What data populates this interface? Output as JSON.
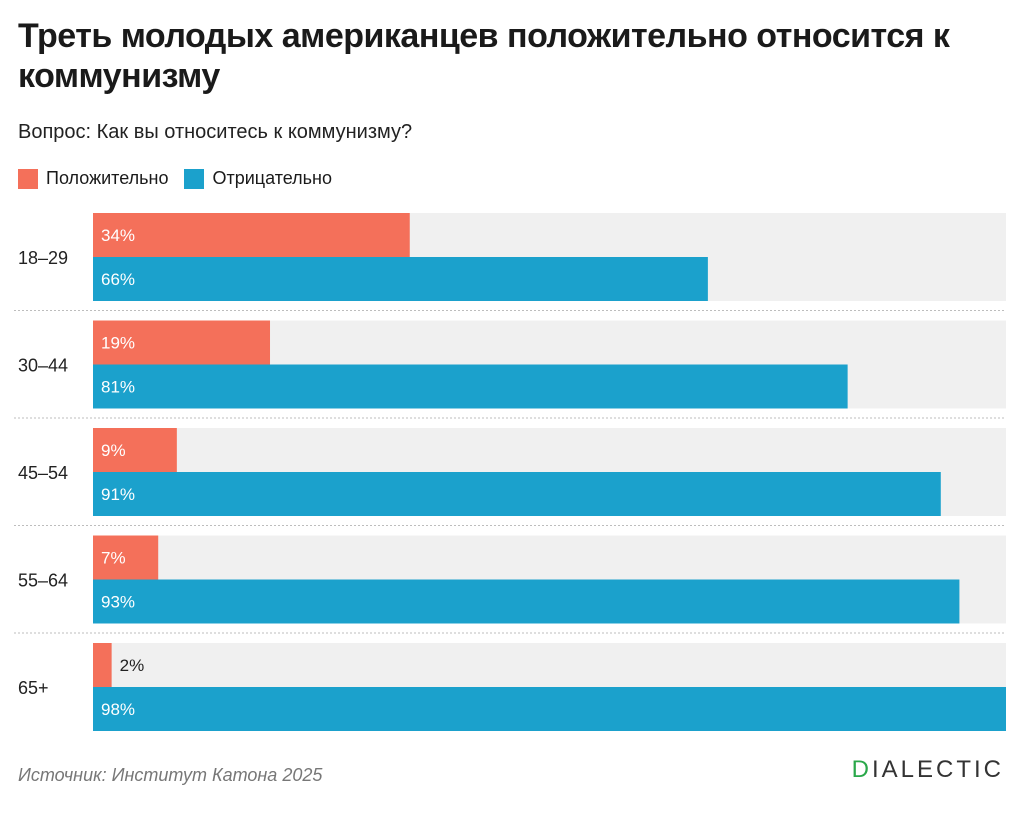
{
  "title": "Треть молодых американцев положительно относится к коммунизму",
  "subtitle": "Вопрос: Как вы относитесь к коммунизму?",
  "legend": {
    "positive": "Положительно",
    "negative": "Отрицательно"
  },
  "colors": {
    "positive": "#f4705a",
    "negative": "#1ba1cc",
    "track": "#f0f0f0"
  },
  "chart_data": {
    "type": "bar",
    "orientation": "horizontal",
    "categories": [
      "18–29",
      "30–44",
      "45–54",
      "55–64",
      "65+"
    ],
    "series": [
      {
        "name": "Положительно",
        "values": [
          34,
          19,
          9,
          7,
          2
        ],
        "labels": [
          "34%",
          "19%",
          "9%",
          "7%",
          "2%"
        ]
      },
      {
        "name": "Отрицательно",
        "values": [
          66,
          81,
          91,
          93,
          98
        ],
        "labels": [
          "66%",
          "81%",
          "91%",
          "93%",
          "98%"
        ]
      }
    ],
    "xlim": [
      0,
      98
    ],
    "grid": false
  },
  "source": "Источник: Институт Катона 2025",
  "brand": {
    "first_letter": "D",
    "rest": "IALECTIC"
  }
}
